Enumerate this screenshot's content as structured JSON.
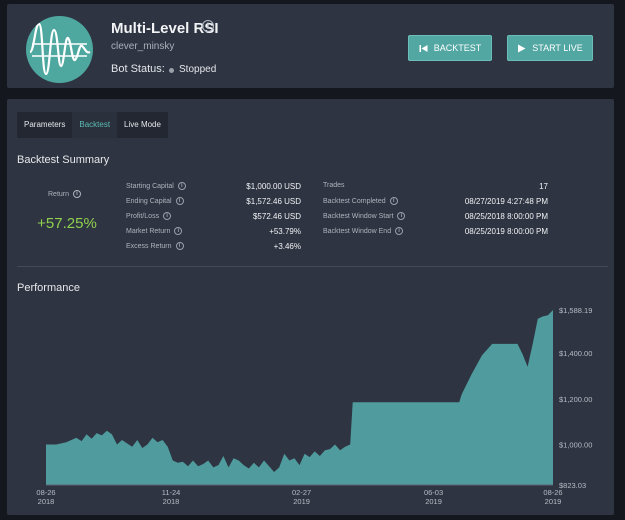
{
  "header": {
    "title": "Multi-Level RSI",
    "username": "clever_minsky",
    "status_label": "Bot Status:",
    "status_value": "Stopped",
    "backtest_button": "BACKTEST",
    "start_live_button": "START LIVE",
    "icons": {
      "info": "info-icon",
      "backtest": "skip-back-icon",
      "start": "play-icon"
    },
    "colors": {
      "accent": "#53a7a3",
      "status_dot": "#9aa0a8"
    }
  },
  "tabs": [
    {
      "label": "Parameters",
      "active": false
    },
    {
      "label": "Backtest",
      "active": true
    },
    {
      "label": "Live Mode",
      "active": false
    }
  ],
  "summary": {
    "title": "Backtest Summary",
    "return_label": "Return",
    "return_value": "+57.25%",
    "return_color": "#8fd14f",
    "left_stats": [
      {
        "label": "Starting Capital",
        "value": "$1,000.00 USD"
      },
      {
        "label": "Ending Capital",
        "value": "$1,572.46 USD"
      },
      {
        "label": "Profit/Loss",
        "value": "$572.46 USD"
      },
      {
        "label": "Market Return",
        "value": "+53.79%"
      },
      {
        "label": "Excess Return",
        "value": "+3.46%"
      }
    ],
    "right_stats": [
      {
        "label": "Trades",
        "value": "17",
        "info": false
      },
      {
        "label": "Backtest Completed",
        "value": "08/27/2019 4:27:48 PM",
        "info": true
      },
      {
        "label": "Backtest Window Start",
        "value": "08/25/2018 8:00:00 PM",
        "info": true
      },
      {
        "label": "Backtest Window End",
        "value": "08/25/2019 8:00:00 PM",
        "info": true
      }
    ]
  },
  "performance": {
    "title": "Performance"
  },
  "chart_data": {
    "type": "area",
    "color": "#4f9b9d",
    "ylim": [
      823.03,
      1588.19
    ],
    "y_ticks": [
      "$1,588.19",
      "$1,400.00",
      "$1,200.00",
      "$1,000.00",
      "$823.03"
    ],
    "y_tick_values": [
      1588.19,
      1400,
      1200,
      1000,
      823.03
    ],
    "x_ticks": [
      {
        "line1": "08-26",
        "line2": "2018",
        "pos": 0
      },
      {
        "line1": "11-24",
        "line2": "2018",
        "pos": 0.2466
      },
      {
        "line1": "02-27",
        "line2": "2019",
        "pos": 0.5041
      },
      {
        "line1": "06-03",
        "line2": "2019",
        "pos": 0.7644
      },
      {
        "line1": "08-26",
        "line2": "2019",
        "pos": 1
      }
    ],
    "x": [
      0,
      0.02,
      0.04,
      0.05,
      0.06,
      0.07,
      0.08,
      0.09,
      0.1,
      0.11,
      0.12,
      0.13,
      0.14,
      0.15,
      0.16,
      0.17,
      0.18,
      0.19,
      0.2,
      0.21,
      0.22,
      0.23,
      0.24,
      0.25,
      0.26,
      0.27,
      0.28,
      0.29,
      0.3,
      0.31,
      0.32,
      0.33,
      0.34,
      0.35,
      0.36,
      0.37,
      0.38,
      0.39,
      0.4,
      0.41,
      0.42,
      0.43,
      0.44,
      0.45,
      0.46,
      0.47,
      0.48,
      0.49,
      0.5,
      0.51,
      0.52,
      0.53,
      0.54,
      0.55,
      0.56,
      0.57,
      0.58,
      0.59,
      0.6,
      0.605,
      0.62,
      0.64,
      0.66,
      0.68,
      0.7,
      0.72,
      0.74,
      0.76,
      0.78,
      0.8,
      0.81,
      0.815,
      0.82,
      0.84,
      0.86,
      0.88,
      0.89,
      0.9,
      0.91,
      0.92,
      0.93,
      0.94,
      0.95,
      0.96,
      0.97,
      0.98,
      0.99,
      1
    ],
    "values": [
      1000,
      1000,
      1010,
      1020,
      1030,
      1015,
      1045,
      1025,
      1050,
      1040,
      1060,
      1045,
      1000,
      1020,
      1005,
      990,
      1020,
      985,
      1000,
      1030,
      1010,
      1020,
      990,
      930,
      920,
      925,
      905,
      930,
      905,
      915,
      930,
      900,
      910,
      950,
      900,
      940,
      930,
      910,
      895,
      920,
      900,
      930,
      905,
      880,
      900,
      960,
      930,
      940,
      910,
      960,
      945,
      970,
      950,
      975,
      980,
      1000,
      975,
      990,
      1000,
      1185,
      1185,
      1185,
      1185,
      1185,
      1185,
      1185,
      1185,
      1185,
      1185,
      1185,
      1185,
      1185,
      1220,
      1310,
      1390,
      1440,
      1440,
      1440,
      1440,
      1440,
      1440,
      1395,
      1340,
      1440,
      1550,
      1560,
      1565,
      1588.19
    ]
  }
}
